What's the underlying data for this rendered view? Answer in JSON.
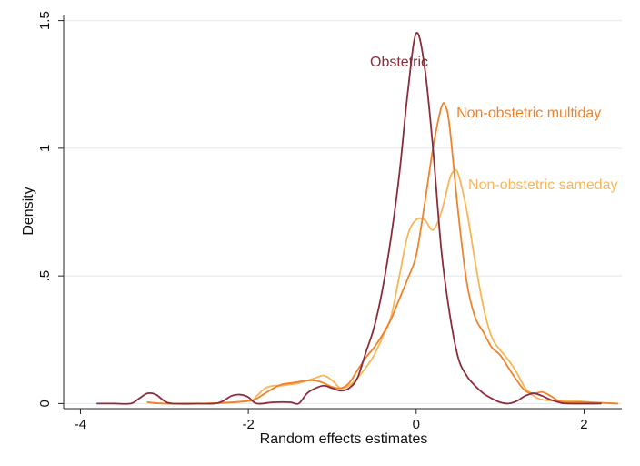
{
  "chart_data": {
    "type": "line",
    "title": "",
    "xlabel": "Random effects estimates",
    "ylabel": "Density",
    "xlim": [
      -4.2,
      2.45
    ],
    "ylim": [
      -0.02,
      1.52
    ],
    "x_ticks": [
      -4,
      -2,
      0,
      2
    ],
    "x_tick_labels": [
      "-4",
      "-2",
      "0",
      "2"
    ],
    "y_ticks": [
      0,
      0.5,
      1,
      1.5
    ],
    "y_tick_labels": [
      "0",
      ".5",
      "1",
      "1.5"
    ],
    "grid": "horizontal",
    "series": [
      {
        "name": "Obstetric",
        "color": "#8B2D3A",
        "points": [
          [
            -3.8,
            0.0
          ],
          [
            -3.6,
            0.0
          ],
          [
            -3.4,
            0.0
          ],
          [
            -3.3,
            0.02
          ],
          [
            -3.2,
            0.04
          ],
          [
            -3.1,
            0.035
          ],
          [
            -3.0,
            0.01
          ],
          [
            -2.9,
            0.0
          ],
          [
            -2.6,
            0.0
          ],
          [
            -2.4,
            0.0
          ],
          [
            -2.3,
            0.01
          ],
          [
            -2.2,
            0.03
          ],
          [
            -2.1,
            0.035
          ],
          [
            -2.0,
            0.025
          ],
          [
            -1.9,
            0.0
          ],
          [
            -1.7,
            0.005
          ],
          [
            -1.5,
            0.005
          ],
          [
            -1.4,
            0.0
          ],
          [
            -1.3,
            0.04
          ],
          [
            -1.2,
            0.06
          ],
          [
            -1.1,
            0.07
          ],
          [
            -1.0,
            0.06
          ],
          [
            -0.9,
            0.05
          ],
          [
            -0.8,
            0.06
          ],
          [
            -0.7,
            0.1
          ],
          [
            -0.6,
            0.2
          ],
          [
            -0.5,
            0.3
          ],
          [
            -0.4,
            0.45
          ],
          [
            -0.3,
            0.65
          ],
          [
            -0.2,
            0.9
          ],
          [
            -0.1,
            1.22
          ],
          [
            0.0,
            1.45
          ],
          [
            0.1,
            1.32
          ],
          [
            0.2,
            1.0
          ],
          [
            0.3,
            0.6
          ],
          [
            0.4,
            0.35
          ],
          [
            0.5,
            0.18
          ],
          [
            0.6,
            0.11
          ],
          [
            0.7,
            0.07
          ],
          [
            0.8,
            0.04
          ],
          [
            0.9,
            0.02
          ],
          [
            1.0,
            0.005
          ],
          [
            1.1,
            0.0
          ],
          [
            1.2,
            0.01
          ],
          [
            1.3,
            0.03
          ],
          [
            1.4,
            0.04
          ],
          [
            1.5,
            0.03
          ],
          [
            1.6,
            0.015
          ],
          [
            1.7,
            0.005
          ],
          [
            1.8,
            0.0
          ],
          [
            2.2,
            0.0
          ]
        ]
      },
      {
        "name": "Non-obstetric multiday",
        "color": "#F0822B",
        "points": [
          [
            -3.2,
            0.005
          ],
          [
            -3.0,
            0.0
          ],
          [
            -2.5,
            0.0
          ],
          [
            -2.0,
            0.01
          ],
          [
            -1.9,
            0.02
          ],
          [
            -1.8,
            0.04
          ],
          [
            -1.7,
            0.06
          ],
          [
            -1.6,
            0.075
          ],
          [
            -1.5,
            0.08
          ],
          [
            -1.4,
            0.085
          ],
          [
            -1.3,
            0.09
          ],
          [
            -1.2,
            0.09
          ],
          [
            -1.1,
            0.08
          ],
          [
            -1.0,
            0.065
          ],
          [
            -0.9,
            0.06
          ],
          [
            -0.8,
            0.08
          ],
          [
            -0.7,
            0.13
          ],
          [
            -0.6,
            0.18
          ],
          [
            -0.5,
            0.22
          ],
          [
            -0.4,
            0.27
          ],
          [
            -0.3,
            0.33
          ],
          [
            -0.2,
            0.41
          ],
          [
            -0.1,
            0.49
          ],
          [
            0.0,
            0.58
          ],
          [
            0.1,
            0.78
          ],
          [
            0.2,
            1.0
          ],
          [
            0.3,
            1.16
          ],
          [
            0.35,
            1.165
          ],
          [
            0.4,
            1.08
          ],
          [
            0.5,
            0.75
          ],
          [
            0.6,
            0.48
          ],
          [
            0.7,
            0.34
          ],
          [
            0.8,
            0.28
          ],
          [
            0.9,
            0.22
          ],
          [
            1.0,
            0.19
          ],
          [
            1.1,
            0.14
          ],
          [
            1.2,
            0.09
          ],
          [
            1.3,
            0.05
          ],
          [
            1.4,
            0.04
          ],
          [
            1.5,
            0.045
          ],
          [
            1.6,
            0.03
          ],
          [
            1.7,
            0.01
          ],
          [
            1.8,
            0.005
          ],
          [
            2.0,
            0.005
          ],
          [
            2.4,
            0.0
          ]
        ]
      },
      {
        "name": "Non-obstetric sameday",
        "color": "#F9B557",
        "points": [
          [
            -3.2,
            0.005
          ],
          [
            -3.0,
            0.0
          ],
          [
            -2.5,
            0.0
          ],
          [
            -2.0,
            0.01
          ],
          [
            -1.9,
            0.03
          ],
          [
            -1.8,
            0.06
          ],
          [
            -1.7,
            0.07
          ],
          [
            -1.6,
            0.07
          ],
          [
            -1.5,
            0.075
          ],
          [
            -1.4,
            0.08
          ],
          [
            -1.3,
            0.09
          ],
          [
            -1.2,
            0.1
          ],
          [
            -1.1,
            0.11
          ],
          [
            -1.0,
            0.09
          ],
          [
            -0.9,
            0.06
          ],
          [
            -0.8,
            0.07
          ],
          [
            -0.7,
            0.1
          ],
          [
            -0.6,
            0.14
          ],
          [
            -0.5,
            0.19
          ],
          [
            -0.4,
            0.26
          ],
          [
            -0.3,
            0.34
          ],
          [
            -0.2,
            0.5
          ],
          [
            -0.1,
            0.66
          ],
          [
            0.0,
            0.72
          ],
          [
            0.1,
            0.72
          ],
          [
            0.2,
            0.68
          ],
          [
            0.3,
            0.75
          ],
          [
            0.4,
            0.88
          ],
          [
            0.45,
            0.91
          ],
          [
            0.5,
            0.9
          ],
          [
            0.6,
            0.76
          ],
          [
            0.7,
            0.56
          ],
          [
            0.8,
            0.38
          ],
          [
            0.9,
            0.26
          ],
          [
            1.0,
            0.21
          ],
          [
            1.1,
            0.17
          ],
          [
            1.2,
            0.12
          ],
          [
            1.3,
            0.06
          ],
          [
            1.4,
            0.03
          ],
          [
            1.5,
            0.015
          ],
          [
            1.7,
            0.01
          ],
          [
            1.9,
            0.01
          ],
          [
            2.1,
            0.005
          ],
          [
            2.4,
            0.0
          ]
        ]
      }
    ],
    "annotations": [
      {
        "text": "Obstetric",
        "series": 0,
        "x": -0.55,
        "y": 1.32
      },
      {
        "text": "Non-obstetric multiday",
        "series": 1,
        "x": 0.48,
        "y": 1.12
      },
      {
        "text": "Non-obstetric sameday",
        "series": 2,
        "x": 0.62,
        "y": 0.84
      }
    ]
  }
}
